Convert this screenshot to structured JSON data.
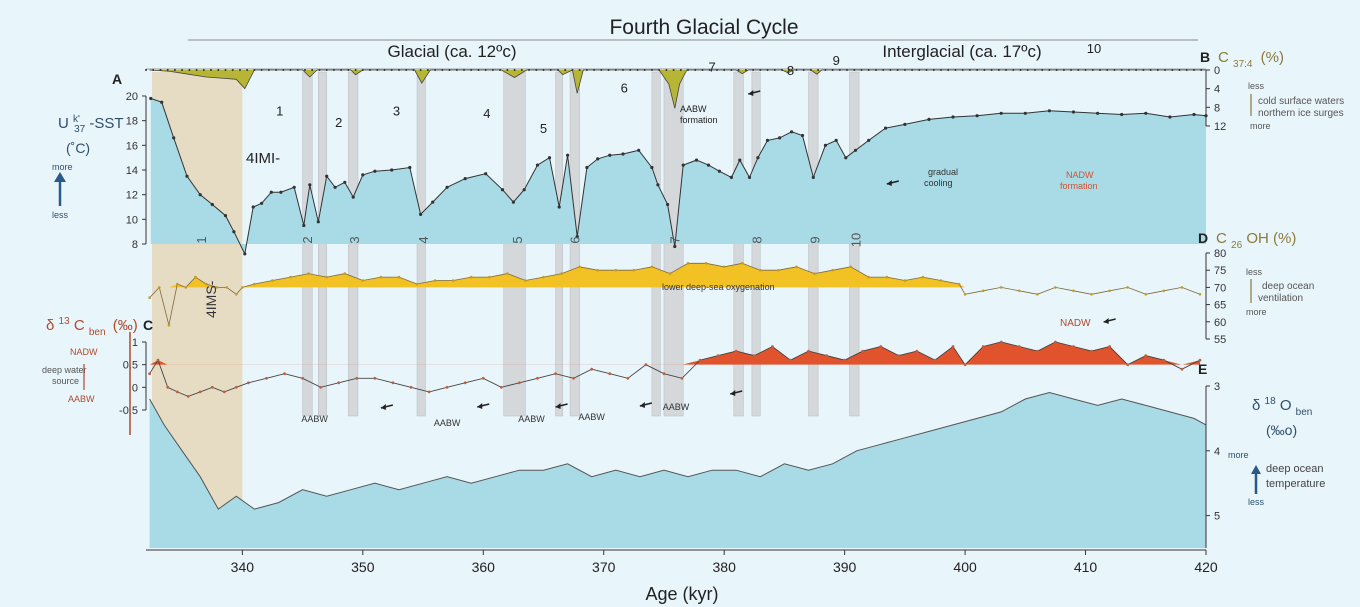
{
  "title": "Fourth Glacial Cycle",
  "phases": [
    {
      "label": "Glacial (ca. 12ºc)"
    },
    {
      "label": "Interglacial (ca. 17ºc)"
    }
  ],
  "panels": {
    "A": {
      "letter": "A",
      "label_main": "U",
      "label_sup": "k'",
      "label_sub": "37",
      "label_tail": "-SST",
      "unit": "(˚C)",
      "more": "more",
      "less": "less"
    },
    "B": {
      "letter": "B",
      "label_main": "C",
      "label_sub": "37:4",
      "unit": "(%)",
      "less": "less",
      "more": "more",
      "note1": "cold surface waters",
      "note2": "northern ice surges"
    },
    "C": {
      "letter": "C",
      "label_main": "δ",
      "label_sup": "13",
      "label_mid": "C",
      "label_sub": "ben",
      "unit": "(‰)",
      "top": "NADW",
      "mid": "deep water",
      "mid2": "source",
      "bottom": "AABW"
    },
    "D": {
      "letter": "D",
      "label_main": "C",
      "label_sub": "26",
      "label_tail": "OH (%)",
      "less": "less",
      "more": "more",
      "note1": "deep ocean",
      "note2": "ventilation"
    },
    "E": {
      "letter": "E",
      "label_main": "δ",
      "label_sup": "18",
      "label_mid": "O",
      "label_sub": "ben",
      "unit": "(‰o)",
      "more": "more",
      "less": "less",
      "note1": "deep ocean",
      "note2": "temperature"
    }
  },
  "annotations": {
    "imi": "4IMI-",
    "ims": "4IMS-",
    "aabw_formation": "AABW formation",
    "gradual_cooling": "gradual cooling",
    "nadw_formation": "NADW formation",
    "lower_oxygenation": "lower deep-sea oxygenation",
    "nadw": "NADW",
    "aabw": "AABW"
  },
  "chart_data": {
    "type": "line",
    "title": "Fourth Glacial Cycle",
    "xlabel": "Age (kyr)",
    "xlim": [
      332,
      420
    ],
    "x_ticks": [
      340,
      350,
      360,
      370,
      380,
      390,
      400,
      410,
      420
    ],
    "grid": false,
    "stage_bands": [
      {
        "id": "1",
        "x": [
          332.5,
          340
        ]
      },
      {
        "id": "2",
        "x": [
          345.0,
          345.8
        ]
      },
      {
        "id": "2b",
        "x": [
          346.3,
          347.0
        ]
      },
      {
        "id": "3",
        "x": [
          348.8,
          349.6
        ]
      },
      {
        "id": "4",
        "x": [
          354.5,
          355.2
        ]
      },
      {
        "id": "5",
        "x": [
          361.7,
          363.5
        ]
      },
      {
        "id": "6a",
        "x": [
          366.0,
          366.6
        ]
      },
      {
        "id": "6b",
        "x": [
          367.2,
          368.0
        ]
      },
      {
        "id": "7a",
        "x": [
          374.0,
          374.7
        ]
      },
      {
        "id": "7b",
        "x": [
          375.0,
          376.6
        ]
      },
      {
        "id": "8a",
        "x": [
          380.8,
          381.6
        ]
      },
      {
        "id": "8b",
        "x": [
          382.3,
          383.0
        ]
      },
      {
        "id": "9",
        "x": [
          387.0,
          387.8
        ]
      },
      {
        "id": "10",
        "x": [
          390.4,
          391.2
        ]
      }
    ],
    "band_labels": [
      {
        "text": "1",
        "x": 336.5
      },
      {
        "text": "2",
        "x": 345.3
      },
      {
        "text": "3",
        "x": 349.2
      },
      {
        "text": "4",
        "x": 354.9
      },
      {
        "text": "5",
        "x": 362.7
      },
      {
        "text": "6",
        "x": 367.5
      },
      {
        "text": "7",
        "x": 375.8
      },
      {
        "text": "8",
        "x": 382.6
      },
      {
        "text": "9",
        "x": 387.4
      },
      {
        "text": "10",
        "x": 390.8
      }
    ],
    "event_labels": [
      {
        "text": "1",
        "x": 343.1,
        "y": 18.4
      },
      {
        "text": "2",
        "x": 348.0,
        "y": 17.5
      },
      {
        "text": "3",
        "x": 352.8,
        "y": 18.4
      },
      {
        "text": "4",
        "x": 360.3,
        "y": 18.2
      },
      {
        "text": "5",
        "x": 365.0,
        "y": 17.0
      },
      {
        "text": "6",
        "x": 371.7,
        "y": 20.3
      },
      {
        "text": "7",
        "x": 379.0,
        "y": 22.0
      },
      {
        "text": "8",
        "x": 385.5,
        "y": 21.7
      },
      {
        "text": "9",
        "x": 389.3,
        "y": 22.5
      },
      {
        "text": "10",
        "x": 410.7,
        "y": 23.5
      }
    ],
    "series": [
      {
        "name": "Uk'37-SST",
        "panel": "A",
        "ylim": [
          8,
          20
        ],
        "y_ticks": [
          8,
          10,
          12,
          14,
          16,
          18,
          20
        ],
        "x": [
          332.4,
          333.3,
          334.3,
          335.4,
          336.5,
          337.5,
          338.6,
          339.3,
          340.2,
          340.9,
          341.6,
          342.4,
          343.2,
          344.3,
          345.1,
          345.6,
          346.3,
          347.0,
          347.7,
          348.5,
          349.2,
          350.0,
          351.0,
          352.4,
          353.9,
          354.8,
          355.8,
          357.0,
          358.5,
          360.2,
          361.6,
          362.5,
          363.4,
          364.5,
          365.5,
          366.3,
          367.0,
          367.8,
          368.6,
          369.5,
          370.5,
          371.6,
          372.9,
          374.0,
          374.5,
          375.3,
          375.9,
          376.6,
          377.7,
          378.7,
          379.6,
          380.6,
          381.3,
          382.1,
          382.8,
          383.6,
          384.6,
          385.6,
          386.5,
          387.4,
          388.4,
          389.3,
          390.1,
          390.9,
          392.0,
          393.4,
          395.0,
          397.0,
          399.0,
          401.0,
          403.0,
          405.0,
          407.0,
          409.0,
          411.0,
          413.0,
          415.0,
          417.0,
          419.0,
          420.0
        ],
        "y": [
          19.8,
          19.5,
          16.6,
          13.5,
          12.0,
          11.2,
          10.3,
          9.0,
          7.2,
          11.0,
          11.3,
          12.2,
          12.2,
          12.6,
          9.5,
          12.8,
          9.8,
          13.5,
          12.6,
          13.0,
          11.8,
          13.6,
          13.9,
          14.0,
          14.2,
          10.4,
          11.4,
          12.6,
          13.3,
          13.7,
          12.4,
          11.4,
          12.4,
          14.4,
          15.0,
          11.0,
          15.2,
          8.6,
          14.2,
          14.9,
          15.2,
          15.3,
          15.6,
          14.2,
          12.8,
          11.2,
          7.8,
          14.4,
          14.8,
          14.4,
          13.9,
          13.4,
          14.8,
          13.4,
          15.0,
          16.4,
          16.6,
          17.1,
          16.8,
          13.4,
          16.0,
          16.4,
          15.0,
          15.6,
          16.4,
          17.4,
          17.7,
          18.1,
          18.3,
          18.4,
          18.6,
          18.6,
          18.8,
          18.7,
          18.6,
          18.5,
          18.6,
          18.3,
          18.5,
          18.4
        ]
      },
      {
        "name": "C37:4 (%)",
        "panel": "B",
        "ylim": [
          0,
          12
        ],
        "y_ticks": [
          0,
          4,
          8,
          12
        ],
        "x": [
          332.3,
          334.0,
          335.5,
          337.0,
          338.5,
          339.5,
          340.2,
          341.0,
          345.0,
          345.6,
          346.2,
          349.0,
          349.4,
          350.0,
          354.3,
          354.9,
          355.6,
          361.5,
          362.6,
          363.6,
          366.2,
          366.6,
          367.4,
          367.8,
          368.3,
          374.6,
          375.4,
          375.9,
          376.3,
          376.9,
          381.0,
          381.5,
          382.0,
          384.8,
          385.3,
          385.8,
          387.2,
          387.7,
          388.1,
          420.0
        ],
        "y": [
          0,
          0.3,
          0.9,
          1.5,
          1.8,
          2.0,
          4.0,
          0,
          0,
          1.5,
          0,
          0,
          1.0,
          0,
          0,
          2.8,
          0,
          0,
          1.6,
          0,
          0,
          1.0,
          0,
          5.0,
          0,
          0,
          3.0,
          8.2,
          3.0,
          0,
          0,
          0.8,
          0,
          0,
          0.6,
          0,
          0,
          0.9,
          0,
          0
        ]
      },
      {
        "name": "C26OH (%)",
        "panel": "D",
        "ylim": [
          55,
          80
        ],
        "y_ticks": [
          55,
          60,
          65,
          70,
          75,
          80
        ],
        "x": [
          332.3,
          333.1,
          333.9,
          334.6,
          335.3,
          336.1,
          337.0,
          337.9,
          338.7,
          339.5,
          340.0,
          341.0,
          342.5,
          344.0,
          345.5,
          347.0,
          348.5,
          350.0,
          351.5,
          353.0,
          354.5,
          356.0,
          357.5,
          359.0,
          360.5,
          362.0,
          363.5,
          365.0,
          366.5,
          368.0,
          369.5,
          371.0,
          372.5,
          374.0,
          375.5,
          377.0,
          378.5,
          380.0,
          381.5,
          383.0,
          384.5,
          386.0,
          387.5,
          389.0,
          390.5,
          392.0,
          393.5,
          395.0,
          396.5,
          398.0,
          399.5,
          400.0,
          401.5,
          403.0,
          404.5,
          406.0,
          407.5,
          409.0,
          410.5,
          412.0,
          413.5,
          415.0,
          416.5,
          418.0,
          419.5
        ],
        "y": [
          67,
          70,
          59,
          71,
          70,
          73,
          71,
          70,
          70,
          68,
          70,
          71,
          72,
          73,
          74,
          73,
          74,
          72,
          73,
          73,
          71,
          72,
          72,
          73,
          73,
          74,
          72,
          73,
          74,
          76,
          75,
          75,
          75,
          76,
          74,
          77,
          77,
          76,
          77,
          75,
          75,
          76,
          74,
          75,
          76,
          73,
          73,
          72,
          73,
          72,
          71,
          68,
          69,
          70,
          69,
          68,
          70,
          69,
          68,
          69,
          70,
          68,
          69,
          70,
          68
        ]
      },
      {
        "name": "δ13Cben (‰)",
        "panel": "C",
        "ylim": [
          -0.5,
          1.0
        ],
        "y_ticks": [
          -0.5,
          0,
          0.5,
          1
        ],
        "x": [
          332.3,
          333.0,
          333.8,
          334.6,
          335.5,
          336.5,
          337.5,
          338.5,
          339.5,
          340.5,
          342.0,
          343.5,
          345.0,
          346.5,
          348.0,
          349.5,
          351.0,
          352.5,
          354.0,
          355.5,
          357.0,
          358.5,
          360.0,
          361.5,
          363.0,
          364.5,
          366.0,
          367.5,
          369.0,
          370.5,
          372.0,
          373.5,
          375.0,
          376.5,
          378.0,
          379.5,
          381.0,
          382.5,
          384.0,
          385.5,
          387.0,
          388.5,
          390.0,
          391.5,
          393.0,
          394.5,
          396.0,
          397.5,
          399.0,
          400.0,
          401.5,
          403.0,
          404.5,
          406.0,
          407.5,
          409.0,
          410.5,
          412.0,
          413.5,
          415.0,
          416.5,
          418.0,
          419.5
        ],
        "y": [
          0.3,
          0.6,
          0.0,
          -0.1,
          -0.2,
          -0.1,
          0.0,
          -0.1,
          0.0,
          0.1,
          0.2,
          0.3,
          0.2,
          0.0,
          0.1,
          0.2,
          0.2,
          0.1,
          0.0,
          -0.1,
          0.0,
          0.1,
          0.2,
          0.0,
          0.1,
          0.2,
          0.3,
          0.2,
          0.4,
          0.3,
          0.2,
          0.5,
          0.3,
          0.2,
          0.6,
          0.7,
          0.8,
          0.7,
          0.9,
          0.6,
          0.8,
          0.7,
          0.6,
          0.8,
          0.9,
          0.7,
          0.8,
          0.6,
          0.9,
          0.5,
          0.9,
          1.0,
          0.9,
          0.8,
          1.0,
          0.9,
          0.8,
          0.9,
          0.5,
          0.7,
          0.6,
          0.4,
          0.6
        ]
      },
      {
        "name": "δ18Oben (‰)",
        "panel": "E",
        "ylim": [
          5.5,
          3.0
        ],
        "y_ticks": [
          3,
          4,
          5
        ],
        "x": [
          332.3,
          333.5,
          335.0,
          336.5,
          338.0,
          339.5,
          341.0,
          343.0,
          345.0,
          347.0,
          349.0,
          351.0,
          353.0,
          355.0,
          357.0,
          359.0,
          361.0,
          363.0,
          365.0,
          367.0,
          369.0,
          371.0,
          373.0,
          375.0,
          377.0,
          379.0,
          381.0,
          383.0,
          385.0,
          387.0,
          389.0,
          391.0,
          393.0,
          395.0,
          397.0,
          399.0,
          401.0,
          403.0,
          405.0,
          407.0,
          409.0,
          411.0,
          413.0,
          415.0,
          417.0,
          419.0,
          420.0
        ],
        "y": [
          3.2,
          3.6,
          4.0,
          4.4,
          4.9,
          4.7,
          4.9,
          4.8,
          4.6,
          4.7,
          4.6,
          4.5,
          4.6,
          4.5,
          4.4,
          4.5,
          4.4,
          4.3,
          4.3,
          4.2,
          4.4,
          4.3,
          4.4,
          4.3,
          4.4,
          4.3,
          4.3,
          4.4,
          4.2,
          4.3,
          4.2,
          4.0,
          3.9,
          3.8,
          3.7,
          3.6,
          3.5,
          3.4,
          3.2,
          3.1,
          3.2,
          3.3,
          3.2,
          3.3,
          3.4,
          3.5,
          3.6
        ]
      }
    ]
  }
}
